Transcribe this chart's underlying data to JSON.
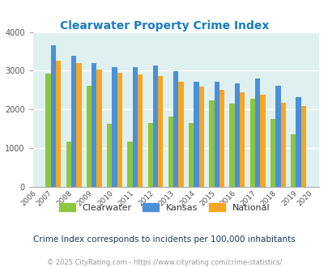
{
  "title": "Clearwater Property Crime Index",
  "years_all": [
    "2006",
    "2007",
    "2008",
    "2009",
    "2010",
    "2011",
    "2012",
    "2013",
    "2014",
    "2015",
    "2016",
    "2017",
    "2018",
    "2019",
    "2020"
  ],
  "plot_years": [
    "2007",
    "2008",
    "2009",
    "2010",
    "2011",
    "2012",
    "2013",
    "2014",
    "2015",
    "2016",
    "2017",
    "2018",
    "2019"
  ],
  "clearwater": [
    2920,
    1180,
    2620,
    1620,
    1160,
    1660,
    1820,
    1650,
    2240,
    2160,
    2270,
    1760,
    1360
  ],
  "kansas": [
    3660,
    3380,
    3200,
    3100,
    3090,
    3130,
    2980,
    2720,
    2720,
    2680,
    2800,
    2620,
    2330
  ],
  "national": [
    3260,
    3190,
    3030,
    2940,
    2910,
    2860,
    2720,
    2600,
    2500,
    2450,
    2380,
    2180,
    2100
  ],
  "clearwater_color": "#8dc63f",
  "kansas_color": "#4a90d9",
  "national_color": "#f5a623",
  "bg_color": "#dff0f0",
  "ylim": [
    0,
    4000
  ],
  "yticks": [
    0,
    1000,
    2000,
    3000,
    4000
  ],
  "bar_width": 0.25,
  "subtitle": "Crime Index corresponds to incidents per 100,000 inhabitants",
  "footer": "© 2025 CityRating.com - https://www.cityrating.com/crime-statistics/",
  "title_color": "#1a7cc1",
  "subtitle_color": "#1a3a5c",
  "footer_color": "#999999",
  "legend_labels": [
    "Clearwater",
    "Kansas",
    "National"
  ]
}
